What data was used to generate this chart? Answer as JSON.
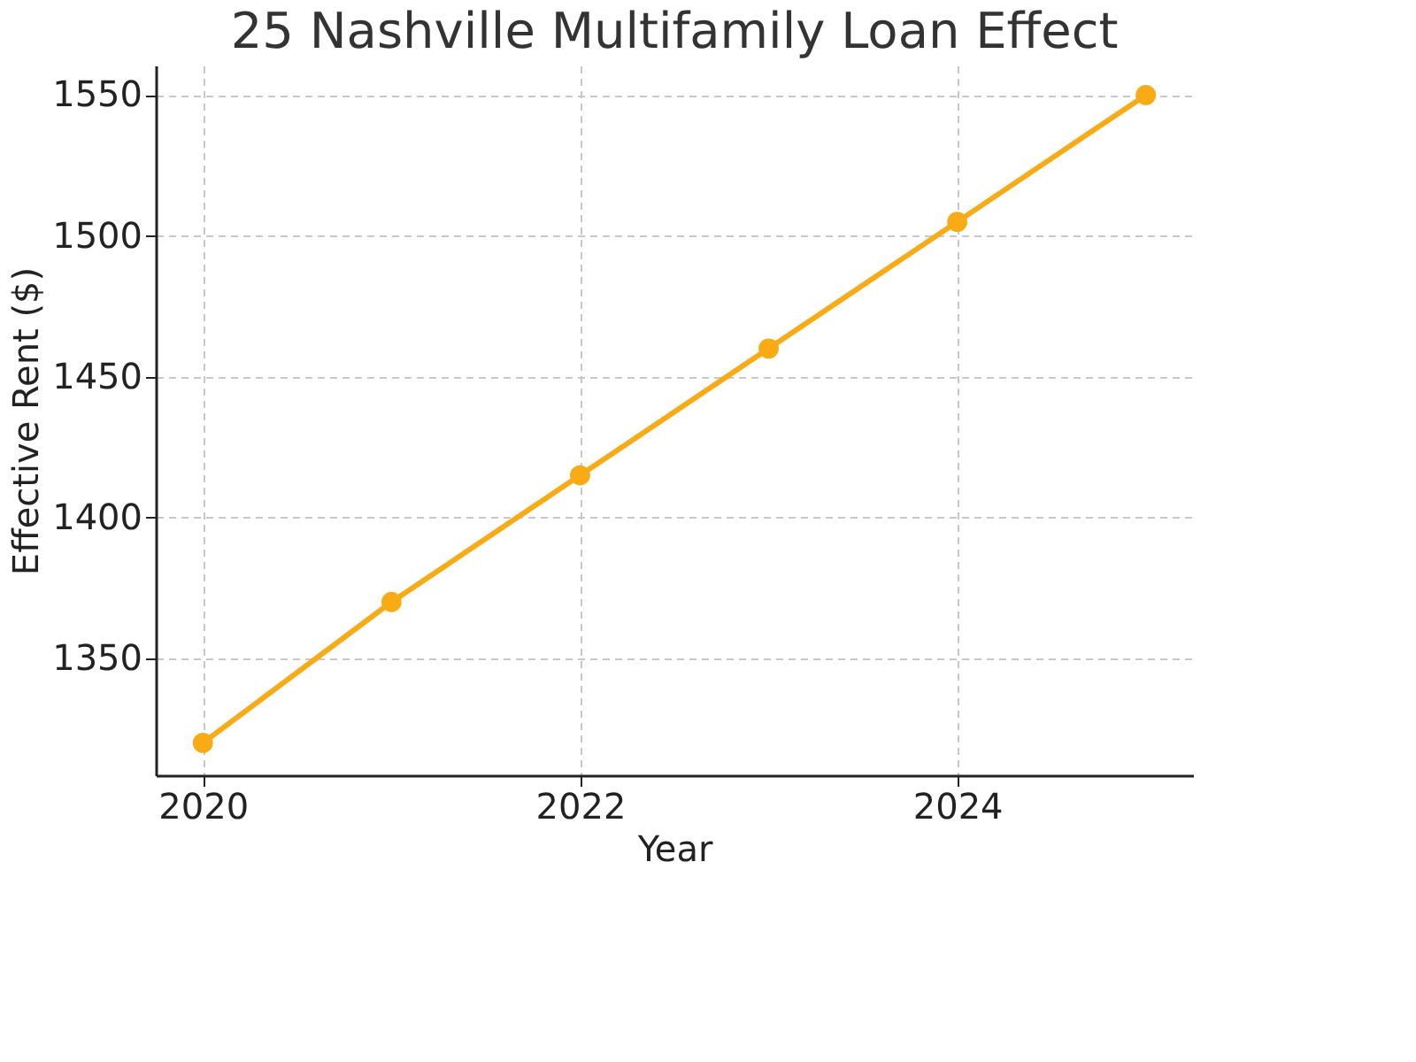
{
  "chart_data": {
    "type": "line",
    "title": "25 Nashville Multifamily Loan Effect",
    "xlabel": "Year",
    "ylabel": "Effective Rent ($)",
    "x": [
      2020,
      2021,
      2022,
      2023,
      2024,
      2025
    ],
    "series": [
      {
        "color": "#f9ab16",
        "values": [
          1320,
          1370,
          1415,
          1460,
          1505,
          1550
        ]
      }
    ],
    "xlim": [
      2019.75,
      2025.25
    ],
    "xticks": [
      2020,
      2022,
      2024
    ],
    "ylim": [
      1308.5,
      1560.5
    ],
    "yticks": [
      1350,
      1400,
      1450,
      1500,
      1550
    ],
    "grid": true,
    "marker": "circle",
    "line_style": "solid"
  }
}
